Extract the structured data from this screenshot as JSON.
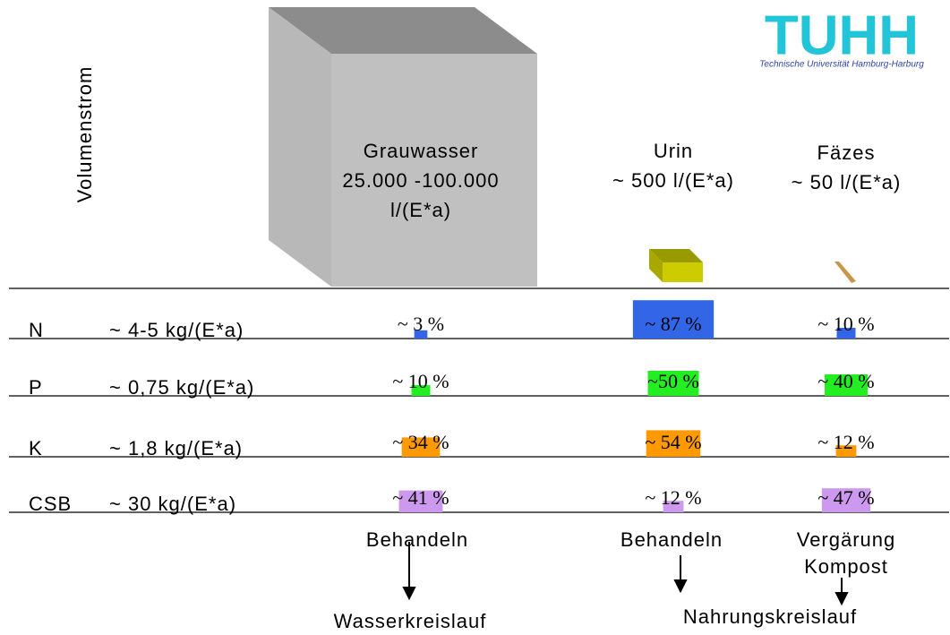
{
  "header": {
    "logo": "TUHH",
    "subtitle": "Technische Universität Hamburg-Harburg"
  },
  "axis_label": "Volumenstrom",
  "columns": [
    {
      "lines": [
        "Grauwasser",
        "25.000 -100.000",
        "l/(E*a)"
      ]
    },
    {
      "lines": [
        "Urin",
        "~ 500 l/(E*a)"
      ]
    },
    {
      "lines": [
        "Fäzes",
        "~ 50 l/(E*a)"
      ]
    }
  ],
  "rows": [
    {
      "name": "N",
      "load": "~ 4-5 kg/(E*a)",
      "color": "#3366e6",
      "cells": [
        {
          "value": 3,
          "label": "~ 3 %"
        },
        {
          "value": 87,
          "label": "~ 87 %"
        },
        {
          "value": 10,
          "label": "~ 10 %"
        }
      ]
    },
    {
      "name": "P",
      "load": "~ 0,75 kg/(E*a)",
      "color": "#22ee22",
      "cells": [
        {
          "value": 10,
          "label": "~ 10 %"
        },
        {
          "value": 50,
          "label": "~50 %"
        },
        {
          "value": 40,
          "label": "~ 40 %"
        }
      ]
    },
    {
      "name": "K",
      "load": "~ 1,8 kg/(E*a)",
      "color": "#ff9900",
      "cells": [
        {
          "value": 34,
          "label": "~ 34 %"
        },
        {
          "value": 54,
          "label": "~ 54 %"
        },
        {
          "value": 12,
          "label": "~ 12 %"
        }
      ]
    },
    {
      "name": "CSB",
      "load": "~ 30 kg/(E*a)",
      "color": "#cc99ee",
      "cells": [
        {
          "value": 41,
          "label": "~ 41 %"
        },
        {
          "value": 12,
          "label": "~ 12 %"
        },
        {
          "value": 47,
          "label": "~ 47 %"
        }
      ]
    }
  ],
  "outputs": [
    {
      "lines": [
        "Behandeln"
      ]
    },
    {
      "lines": [
        "Behandeln"
      ]
    },
    {
      "lines": [
        "Vergärung",
        "Kompost"
      ]
    }
  ],
  "cycles": [
    "Wasserkreislauf",
    "Nahrungskreislauf"
  ]
}
